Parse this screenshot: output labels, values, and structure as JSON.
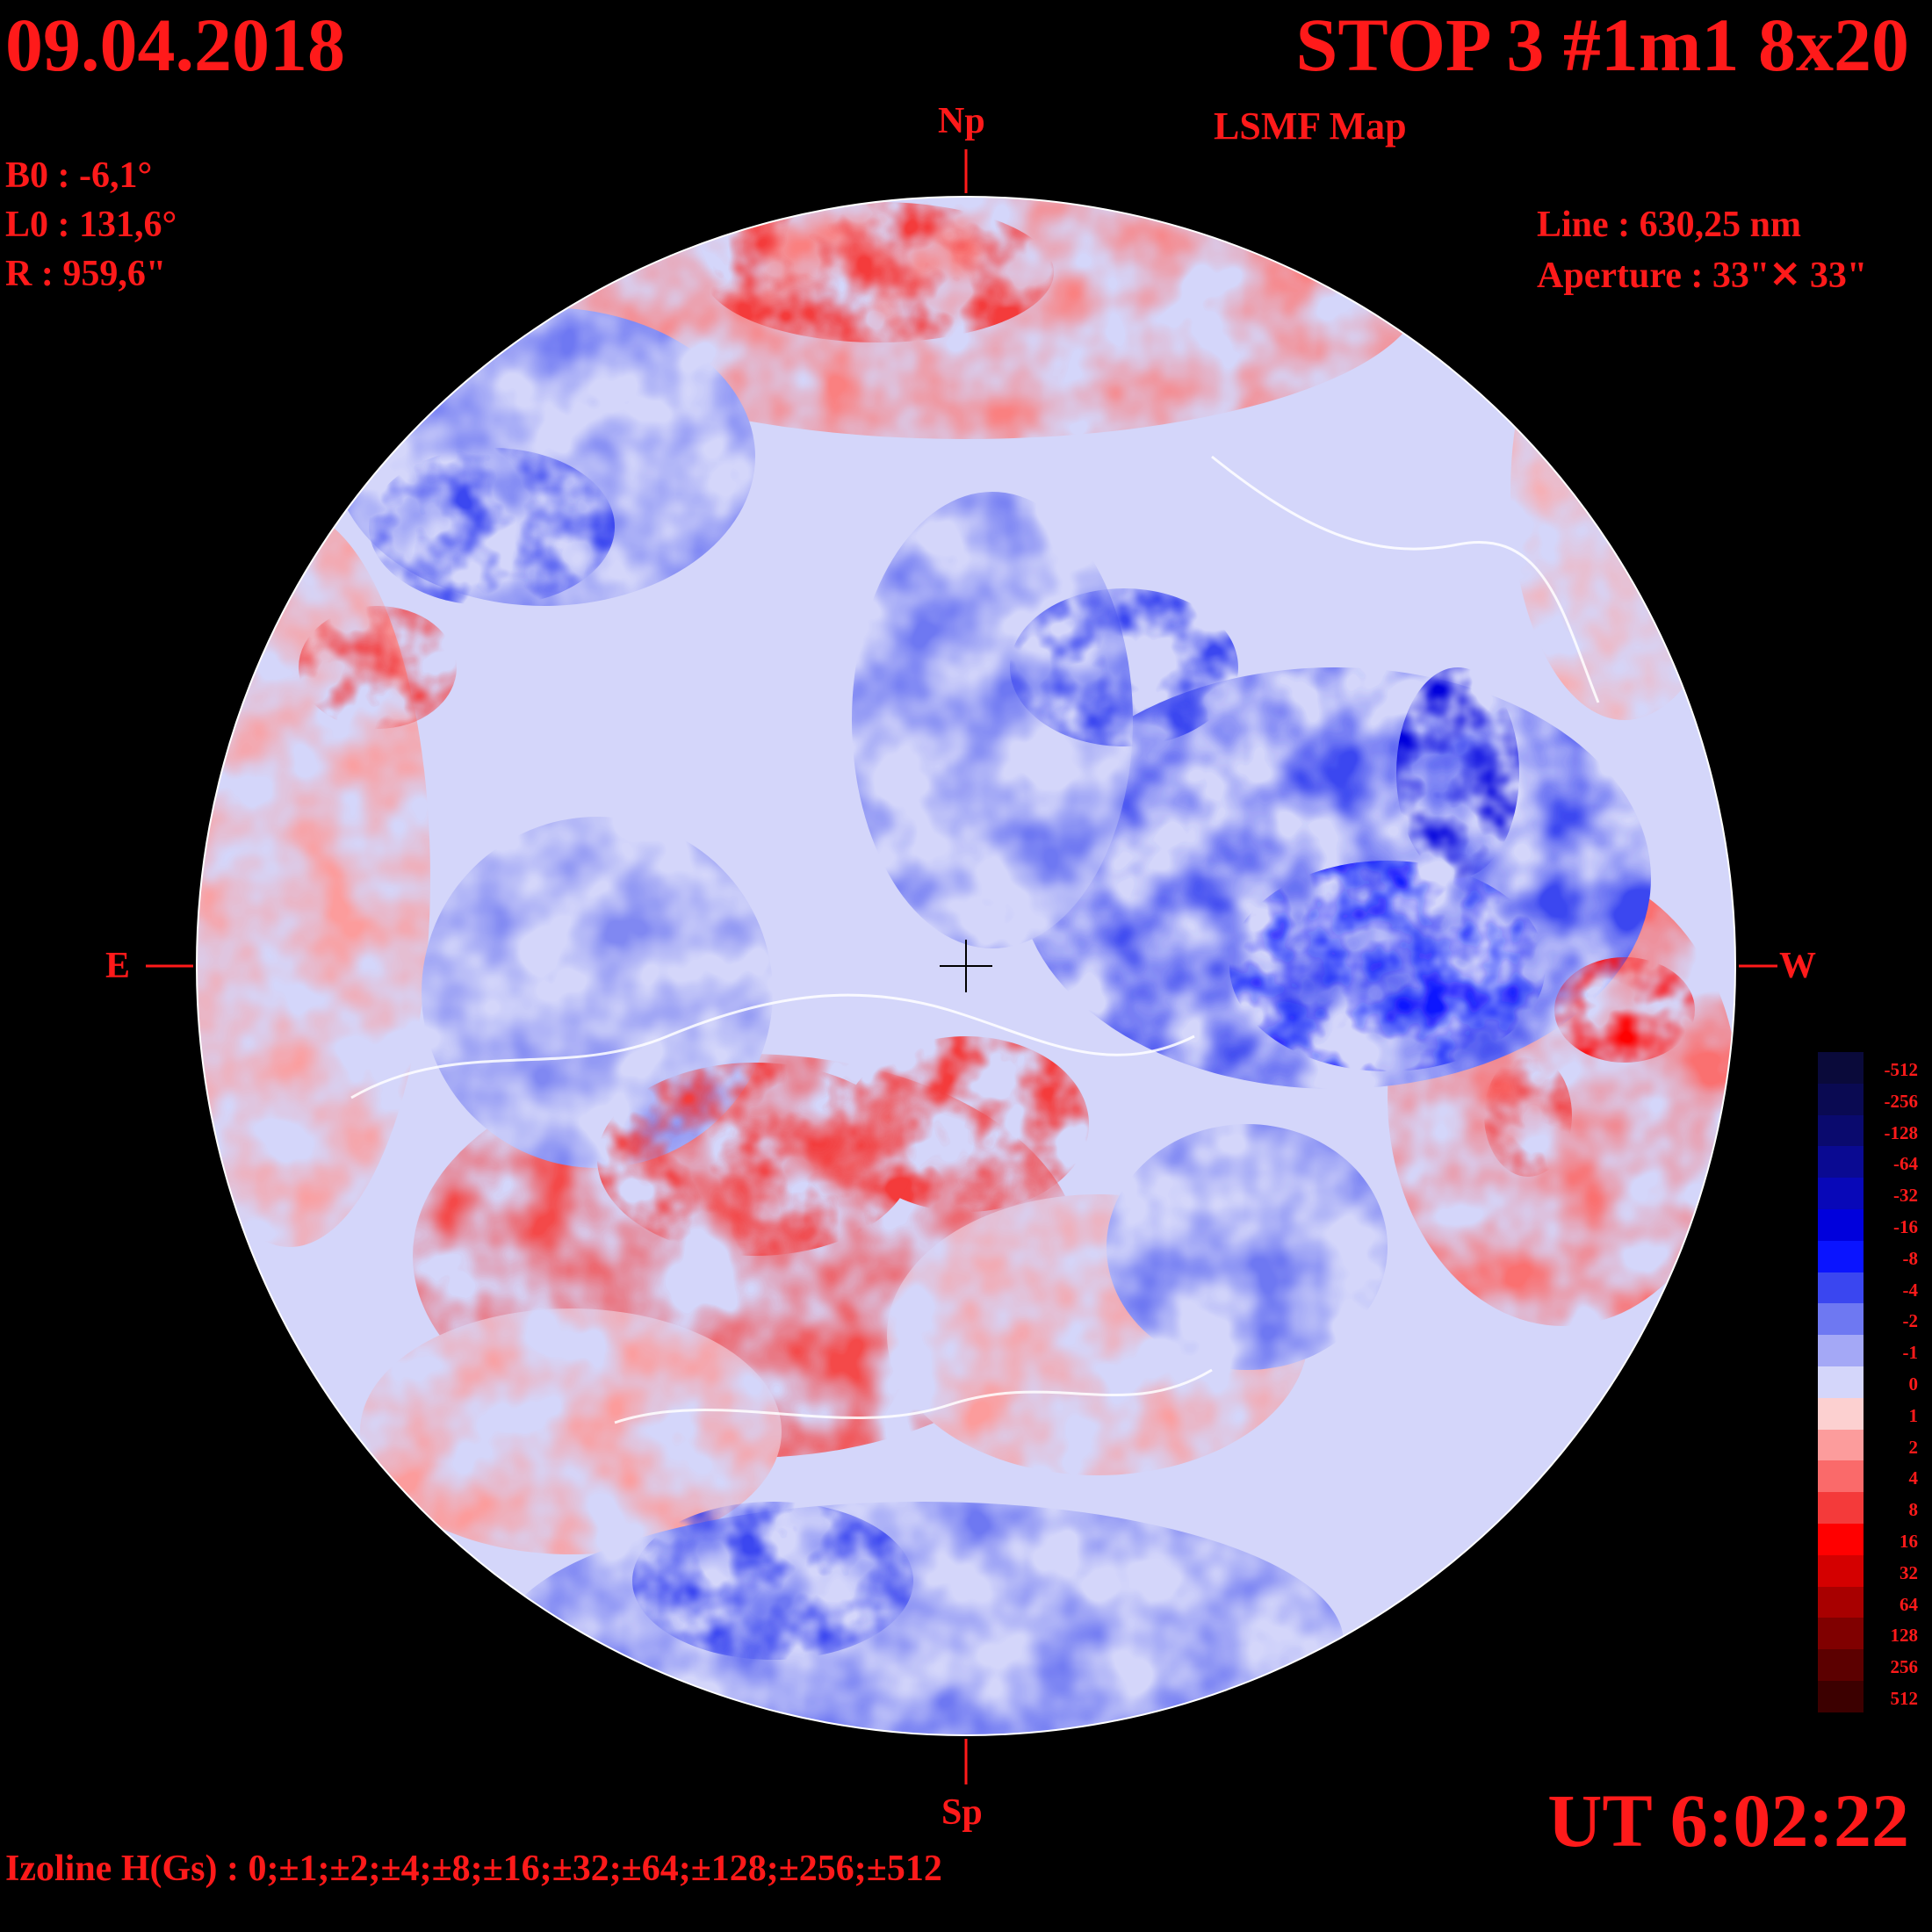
{
  "header": {
    "date": "09.04.2018",
    "title": "STOP 3 #1m1 8x20",
    "subtitle": "LSMF  Map"
  },
  "parameters": {
    "b0": "B0 : -6,1°",
    "l0": "L0 : 131,6°",
    "r": "R  : 959,6\"",
    "line": "Line :  630,25 nm",
    "aperture": "Aperture : 33\"✕ 33\""
  },
  "directions": {
    "north": "Np",
    "south": "Sp",
    "east": "E",
    "west": "W"
  },
  "time": "UT 6:02:22",
  "izoline": "Izoline H(Gs) : 0;±1;±2;±4;±8;±16;±32;±64;±128;±256;±512",
  "colors": {
    "background": "#000000",
    "text": "#ff1a1a",
    "contour_zero": "#ffffff"
  },
  "color_scale": [
    {
      "label": "-512",
      "color": "#0a0a3a"
    },
    {
      "label": "-256",
      "color": "#0a0a52"
    },
    {
      "label": "-128",
      "color": "#0a0a6e"
    },
    {
      "label": "-64",
      "color": "#0a0a92"
    },
    {
      "label": "-32",
      "color": "#0808b8"
    },
    {
      "label": "-16",
      "color": "#0000dc"
    },
    {
      "label": "-8",
      "color": "#0a14ff"
    },
    {
      "label": "-4",
      "color": "#3a46f0"
    },
    {
      "label": "-2",
      "color": "#6e78f2"
    },
    {
      "label": "-1",
      "color": "#a4a8f6"
    },
    {
      "label": "0",
      "color": "#d4d6fa"
    },
    {
      "label": "1",
      "color": "#fcd0d0"
    },
    {
      "label": "2",
      "color": "#fc9c9c"
    },
    {
      "label": "4",
      "color": "#fa6a6a"
    },
    {
      "label": "8",
      "color": "#f43a3a"
    },
    {
      "label": "16",
      "color": "#ff0000"
    },
    {
      "label": "32",
      "color": "#d40000"
    },
    {
      "label": "64",
      "color": "#a80000"
    },
    {
      "label": "128",
      "color": "#800000"
    },
    {
      "label": "256",
      "color": "#5c0000"
    },
    {
      "label": "512",
      "color": "#3c0000"
    }
  ]
}
